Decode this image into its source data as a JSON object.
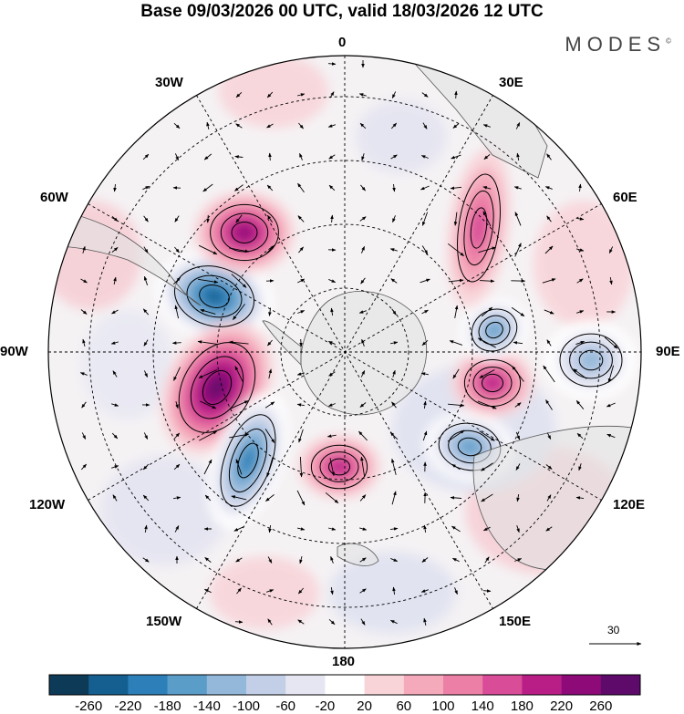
{
  "title": "Base 09/03/2026 00 UTC, valid 18/03/2026 12 UTC",
  "brand": "MODES",
  "brand_mark": "©",
  "longitude_labels": {
    "lon_0": "0",
    "lon_30e": "30E",
    "lon_60e": "60E",
    "lon_90e": "90E",
    "lon_120e": "120E",
    "lon_150e": "150E",
    "lon_180": "180",
    "lon_150w": "150W",
    "lon_120w": "120W",
    "lon_90w": "90W",
    "lon_60w": "60W",
    "lon_30w": "30W"
  },
  "vector_scale": {
    "label": "30",
    "unit_arrow": "reference-arrow"
  },
  "colorbar": {
    "ticks": [
      "-260",
      "-220",
      "-180",
      "-140",
      "-100",
      "-60",
      "-20",
      "20",
      "60",
      "100",
      "140",
      "180",
      "220",
      "260"
    ],
    "colors": [
      "#0d3a57",
      "#145f8f",
      "#2c7fb8",
      "#5b9dc9",
      "#93b8da",
      "#c3cfe6",
      "#e6e6f2",
      "#ffffff",
      "#f8d4d9",
      "#f4aabb",
      "#ec7fa6",
      "#d84c98",
      "#b91e87",
      "#8d0a78",
      "#5e0a6b"
    ]
  },
  "map_data": {
    "projection": "south-polar-stereographic",
    "field": "geopotential height anomaly",
    "units_interval": 40,
    "anomaly_centers": [
      {
        "name": "negative-anomaly-south-pacific-east",
        "value": -220
      },
      {
        "name": "positive-anomaly-bellingshausen",
        "value": 240
      },
      {
        "name": "negative-anomaly-amundsen",
        "value": -200
      },
      {
        "name": "positive-anomaly-south-atlantic",
        "value": 180
      },
      {
        "name": "positive-anomaly-ross-sea",
        "value": 140
      },
      {
        "name": "negative-anomaly-indian-ocean-south",
        "value": -160
      },
      {
        "name": "positive-anomaly-indian-ocean",
        "value": 140
      },
      {
        "name": "negative-anomaly-indian-ocean-east",
        "value": -140
      },
      {
        "name": "negative-anomaly-south-indian-far-east",
        "value": -120
      },
      {
        "name": "positive-anomaly-africa-south",
        "value": 120
      }
    ]
  }
}
